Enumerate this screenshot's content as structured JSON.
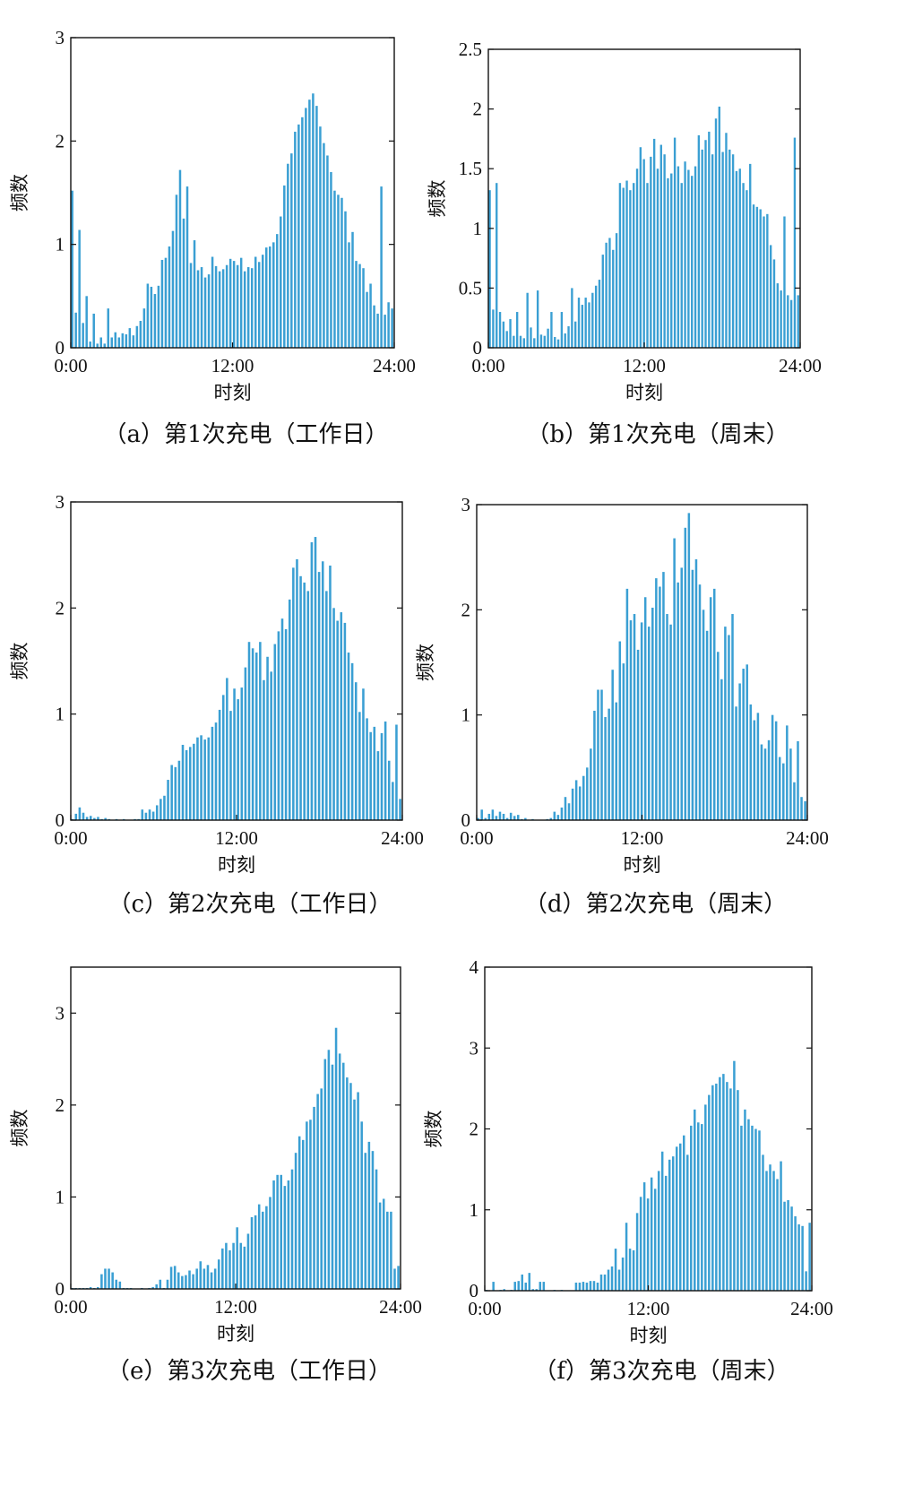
{
  "chart_data": [
    {
      "id": "a",
      "type": "bar",
      "caption": "（a）第1次充电（工作日）",
      "xlabel": "时刻",
      "ylabel": "频数",
      "xticks": [
        "0:00",
        "12:00",
        "24:00"
      ],
      "yticks": [
        "0",
        "1",
        "2",
        "3"
      ],
      "ytick_values": [
        0,
        1,
        2,
        3
      ],
      "ylim": [
        0,
        3
      ],
      "xlim_hours": [
        0,
        24
      ],
      "values": [
        1.52,
        0.34,
        1.14,
        0.24,
        0.5,
        0.06,
        0.33,
        0.04,
        0.1,
        0.04,
        0.38,
        0.1,
        0.15,
        0.1,
        0.14,
        0.13,
        0.19,
        0.12,
        0.21,
        0.26,
        0.38,
        0.62,
        0.59,
        0.52,
        0.6,
        0.85,
        0.87,
        0.98,
        1.13,
        1.48,
        1.72,
        1.25,
        1.56,
        0.82,
        1.04,
        0.75,
        0.78,
        0.68,
        0.71,
        0.88,
        0.79,
        0.74,
        0.76,
        0.8,
        0.86,
        0.84,
        0.8,
        0.87,
        0.74,
        0.78,
        0.77,
        0.88,
        0.83,
        0.9,
        0.97,
        0.98,
        1.02,
        1.1,
        1.27,
        1.57,
        1.78,
        1.88,
        2.09,
        2.16,
        2.23,
        2.32,
        2.4,
        2.46,
        2.34,
        2.14,
        1.98,
        1.86,
        1.7,
        1.52,
        1.48,
        1.45,
        1.32,
        1.02,
        1.12,
        0.84,
        0.81,
        0.77,
        0.54,
        0.62,
        0.41,
        0.33,
        1.56,
        0.32,
        0.44,
        0.38
      ]
    },
    {
      "id": "b",
      "type": "bar",
      "caption": "（b）第1次充电（周末）",
      "xlabel": "时刻",
      "ylabel": "频数",
      "xticks": [
        "0:00",
        "12:00",
        "24:00"
      ],
      "yticks": [
        "0",
        "0.5",
        "1",
        "1.5",
        "2",
        "2.5"
      ],
      "ytick_values": [
        0,
        0.5,
        1,
        1.5,
        2,
        2.5
      ],
      "ylim": [
        0,
        2.5
      ],
      "xlim_hours": [
        0,
        24
      ],
      "values": [
        1.32,
        0.32,
        1.38,
        0.3,
        0.22,
        0.14,
        0.24,
        0.1,
        0.3,
        0.1,
        0.08,
        0.46,
        0.17,
        0.08,
        0.48,
        0.11,
        0.1,
        0.16,
        0.3,
        0.09,
        0.07,
        0.3,
        0.12,
        0.18,
        0.5,
        0.22,
        0.42,
        0.36,
        0.42,
        0.38,
        0.46,
        0.52,
        0.57,
        0.78,
        0.88,
        0.92,
        0.82,
        0.96,
        1.38,
        1.34,
        1.4,
        1.32,
        1.38,
        1.5,
        1.68,
        1.58,
        1.38,
        1.6,
        1.75,
        1.5,
        1.7,
        1.62,
        1.42,
        1.46,
        1.76,
        1.52,
        1.38,
        1.56,
        1.49,
        1.44,
        1.52,
        1.78,
        1.66,
        1.74,
        1.81,
        1.62,
        1.92,
        2.02,
        1.64,
        1.8,
        1.66,
        1.62,
        1.48,
        1.5,
        1.38,
        1.32,
        1.54,
        1.2,
        1.18,
        1.16,
        1.1,
        1.12,
        0.86,
        0.74,
        0.54,
        0.48,
        1.1,
        0.44,
        0.4,
        1.76,
        0.44
      ]
    },
    {
      "id": "c",
      "type": "bar",
      "caption": "（c）第2次充电（工作日）",
      "xlabel": "时刻",
      "ylabel": "频数",
      "xticks": [
        "0:00",
        "12:00",
        "24:00"
      ],
      "yticks": [
        "0",
        "1",
        "2",
        "3"
      ],
      "ytick_values": [
        0,
        1,
        2,
        3
      ],
      "ylim": [
        0,
        3
      ],
      "xlim_hours": [
        0,
        24
      ],
      "values": [
        0.01,
        0.06,
        0.12,
        0.07,
        0.03,
        0.04,
        0.02,
        0.03,
        0.01,
        0.02,
        0.01,
        0.0,
        0.01,
        0.0,
        0.01,
        0.0,
        0.0,
        0.01,
        0.01,
        0.1,
        0.07,
        0.1,
        0.08,
        0.14,
        0.2,
        0.23,
        0.38,
        0.52,
        0.5,
        0.56,
        0.71,
        0.66,
        0.69,
        0.72,
        0.78,
        0.8,
        0.76,
        0.78,
        0.88,
        0.92,
        1.04,
        1.18,
        1.34,
        1.03,
        1.24,
        1.14,
        1.25,
        1.44,
        1.68,
        1.62,
        1.58,
        1.68,
        1.32,
        1.54,
        1.4,
        1.66,
        1.78,
        1.9,
        1.8,
        2.08,
        2.38,
        2.46,
        2.3,
        2.24,
        2.16,
        2.62,
        2.67,
        2.34,
        2.44,
        2.16,
        2.4,
        2.0,
        1.88,
        1.96,
        1.86,
        1.58,
        1.48,
        1.3,
        1.02,
        1.24,
        0.96,
        0.83,
        0.88,
        0.65,
        0.82,
        0.93,
        0.56,
        0.36,
        0.9,
        0.2
      ]
    },
    {
      "id": "d",
      "type": "bar",
      "caption": "（d）第2次充电（周末）",
      "xlabel": "时刻",
      "ylabel": "频数",
      "xticks": [
        "0:00",
        "12:00",
        "24:00"
      ],
      "yticks": [
        "0",
        "1",
        "2",
        "3"
      ],
      "ytick_values": [
        0,
        1,
        2,
        3
      ],
      "ylim": [
        0,
        3
      ],
      "xlim_hours": [
        0,
        24
      ],
      "values": [
        0.02,
        0.1,
        0.02,
        0.06,
        0.1,
        0.04,
        0.08,
        0.06,
        0.02,
        0.07,
        0.04,
        0.05,
        0.01,
        0.02,
        0.0,
        0.01,
        0.0,
        0.0,
        0.0,
        0.01,
        0.02,
        0.08,
        0.05,
        0.12,
        0.22,
        0.16,
        0.3,
        0.38,
        0.32,
        0.42,
        0.5,
        0.68,
        1.04,
        1.24,
        1.24,
        0.98,
        1.06,
        1.43,
        1.12,
        1.7,
        1.49,
        2.2,
        1.9,
        1.96,
        1.62,
        1.88,
        2.12,
        1.84,
        2.02,
        2.3,
        2.22,
        2.36,
        1.96,
        1.86,
        2.68,
        2.26,
        2.4,
        2.78,
        2.92,
        2.38,
        2.48,
        2.24,
        2.0,
        1.8,
        2.12,
        2.2,
        1.6,
        1.34,
        1.84,
        1.76,
        1.96,
        1.08,
        1.3,
        1.44,
        1.48,
        1.1,
        0.95,
        1.02,
        0.72,
        0.68,
        0.76,
        1.0,
        0.94,
        0.6,
        0.54,
        0.9,
        0.68,
        0.36,
        0.75,
        0.22,
        0.18
      ]
    },
    {
      "id": "e",
      "type": "bar",
      "caption": "（e）第3次充电（工作日）",
      "xlabel": "时刻",
      "ylabel": "频数",
      "xticks": [
        "0:00",
        "12:00",
        "24:00"
      ],
      "yticks": [
        "0",
        "1",
        "2",
        "3"
      ],
      "ytick_values": [
        0,
        1,
        2,
        3
      ],
      "ylim": [
        0,
        3.5
      ],
      "xlim_hours": [
        0,
        24
      ],
      "values": [
        0.01,
        0.01,
        0.01,
        0.01,
        0.01,
        0.02,
        0.01,
        0.02,
        0.16,
        0.22,
        0.22,
        0.18,
        0.1,
        0.08,
        0.01,
        0.01,
        0.01,
        0.0,
        0.0,
        0.01,
        0.0,
        0.01,
        0.02,
        0.05,
        0.1,
        0.01,
        0.1,
        0.24,
        0.25,
        0.18,
        0.14,
        0.15,
        0.2,
        0.16,
        0.22,
        0.3,
        0.22,
        0.26,
        0.18,
        0.22,
        0.32,
        0.44,
        0.5,
        0.42,
        0.5,
        0.67,
        0.5,
        0.46,
        0.6,
        0.78,
        0.8,
        0.92,
        0.84,
        0.9,
        1.0,
        1.18,
        1.24,
        1.24,
        1.12,
        1.18,
        1.3,
        1.48,
        1.66,
        1.62,
        1.82,
        1.84,
        1.98,
        2.12,
        2.18,
        2.5,
        2.6,
        2.44,
        2.84,
        2.56,
        2.46,
        2.3,
        2.24,
        2.06,
        2.14,
        1.82,
        1.48,
        1.6,
        1.5,
        1.3,
        0.94,
        0.98,
        0.84,
        0.84,
        0.22,
        0.25
      ]
    },
    {
      "id": "f",
      "type": "bar",
      "caption": "（f）第3次充电（周末）",
      "xlabel": "时刻",
      "ylabel": "频数",
      "xticks": [
        "0:00",
        "12:00",
        "24:00"
      ],
      "yticks": [
        "0",
        "1",
        "2",
        "3",
        "4"
      ],
      "ytick_values": [
        0,
        1,
        2,
        3,
        4
      ],
      "ylim": [
        0,
        4
      ],
      "xlim_hours": [
        0,
        24
      ],
      "values": [
        0.01,
        0.0,
        0.11,
        0.0,
        0.01,
        0.02,
        0.0,
        0.01,
        0.11,
        0.12,
        0.2,
        0.1,
        0.22,
        0.02,
        0.02,
        0.11,
        0.11,
        0.0,
        0.0,
        0.01,
        0.0,
        0.01,
        0.0,
        0.0,
        0.0,
        0.1,
        0.1,
        0.11,
        0.1,
        0.12,
        0.12,
        0.1,
        0.2,
        0.2,
        0.26,
        0.3,
        0.52,
        0.26,
        0.41,
        0.84,
        0.52,
        0.5,
        0.96,
        1.16,
        1.34,
        1.14,
        1.4,
        1.26,
        1.48,
        1.72,
        1.42,
        1.62,
        1.66,
        1.78,
        1.82,
        1.92,
        1.68,
        2.04,
        2.24,
        2.08,
        2.06,
        2.3,
        2.42,
        2.54,
        2.56,
        2.64,
        2.68,
        2.58,
        2.5,
        2.84,
        2.48,
        2.04,
        2.24,
        2.12,
        2.04,
        2.0,
        1.98,
        1.68,
        1.48,
        1.56,
        1.48,
        1.38,
        1.6,
        1.1,
        1.12,
        1.04,
        0.92,
        0.82,
        0.8,
        0.24,
        0.84
      ]
    }
  ]
}
